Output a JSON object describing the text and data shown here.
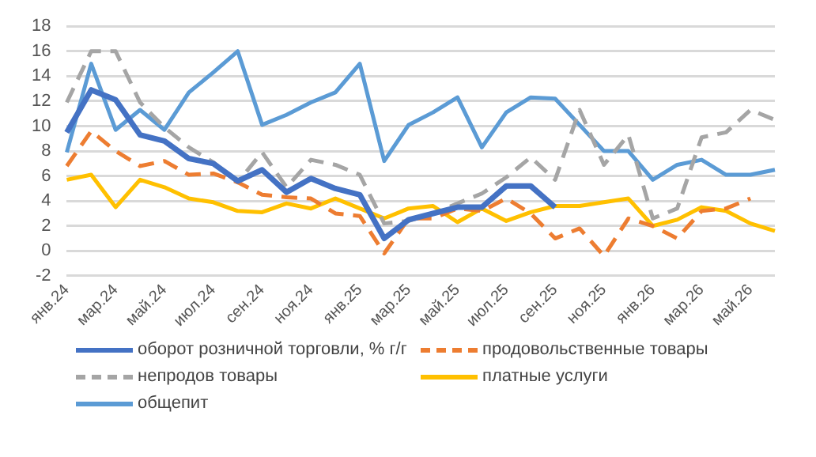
{
  "chart_data": {
    "type": "line",
    "categories": [
      "янв.24",
      null,
      "мар.24",
      null,
      "май.24",
      null,
      "июл.24",
      null,
      "сен.24",
      null,
      "ноя.24",
      null,
      "янв.25",
      null,
      "мар.25",
      null,
      "май.25",
      null,
      "июл.25",
      null,
      "сен.25",
      null,
      "ноя.25",
      null,
      "янв.26",
      null,
      "мар.26",
      null,
      "май.26",
      null
    ],
    "ylim": [
      -2,
      18
    ],
    "yticks": [
      -2,
      0,
      2,
      4,
      6,
      8,
      10,
      12,
      14,
      16,
      18
    ],
    "grid": "y",
    "legend": "bottom",
    "marker": "none",
    "series": [
      {
        "name": "оборот розничной торговли, % г/г",
        "color": "#4472c4",
        "line_style": "solid",
        "values": [
          9.5,
          12.9,
          12.1,
          9.3,
          8.8,
          7.4,
          7.0,
          5.6,
          6.5,
          4.7,
          5.8,
          5.0,
          4.5,
          1.0,
          2.5,
          3.0,
          3.5,
          3.5,
          5.2,
          5.2,
          3.5,
          null,
          null,
          null,
          null,
          null,
          null,
          null,
          null,
          null
        ]
      },
      {
        "name": "продовольственные товары",
        "color": "#ed7d31",
        "line_style": "dashed",
        "values": [
          6.8,
          9.6,
          8.0,
          6.8,
          7.2,
          6.1,
          6.2,
          5.5,
          4.5,
          4.3,
          4.2,
          3.0,
          2.8,
          -0.2,
          2.6,
          2.6,
          3.4,
          3.2,
          4.2,
          3.0,
          1.0,
          1.8,
          -0.4,
          2.6,
          2.0,
          1.0,
          3.2,
          3.4,
          4.2,
          null
        ]
      },
      {
        "name": "непродов товары",
        "color": "#a5a5a5",
        "line_style": "dashed",
        "values": [
          11.9,
          16.0,
          16.0,
          11.9,
          9.9,
          8.3,
          7.1,
          5.5,
          7.9,
          5.1,
          7.3,
          6.9,
          6.1,
          2.2,
          2.4,
          3.0,
          3.8,
          4.6,
          5.9,
          7.5,
          5.7,
          11.3,
          6.9,
          9.3,
          2.6,
          3.4,
          9.1,
          9.5,
          11.3,
          10.5
        ]
      },
      {
        "name": "платные услуги",
        "color": "#ffc000",
        "line_style": "solid",
        "values": [
          5.7,
          6.1,
          3.5,
          5.7,
          5.1,
          4.2,
          3.9,
          3.2,
          3.1,
          3.8,
          3.4,
          4.2,
          3.4,
          2.6,
          3.4,
          3.6,
          2.3,
          3.4,
          2.4,
          3.1,
          3.6,
          3.6,
          3.9,
          4.2,
          2.0,
          2.5,
          3.5,
          3.2,
          2.2,
          1.6
        ]
      },
      {
        "name": "общепит",
        "color": "#5b9bd5",
        "line_style": "solid",
        "values": [
          7.9,
          15.0,
          9.7,
          11.3,
          9.7,
          12.7,
          14.3,
          16.0,
          10.1,
          10.9,
          11.9,
          12.7,
          15.0,
          7.2,
          10.1,
          11.1,
          12.3,
          8.3,
          11.1,
          12.3,
          12.2,
          10.1,
          8.0,
          8.0,
          5.7,
          6.9,
          7.3,
          6.1,
          6.1,
          6.5
        ]
      }
    ]
  }
}
